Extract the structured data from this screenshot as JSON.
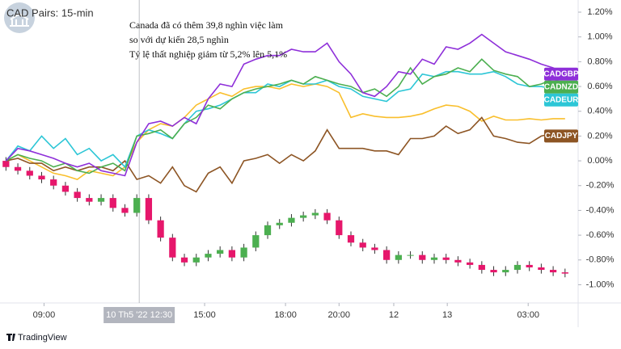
{
  "chart_data": {
    "type": "line",
    "title": "CAD Pairs: 15-min",
    "source": "TradingView",
    "annotations": [
      "Canada đã có thêm 39,8 nghìn việc làm",
      "so với dự kiến 28,5 nghìn",
      "Tỷ lệ thất nghiệp giảm từ 5,2% lên 5,1%"
    ],
    "crosshair": {
      "x": 11.2,
      "label": "10 Th5 '22 12:30"
    },
    "x": [
      0,
      1,
      2,
      3,
      4,
      5,
      6,
      7,
      8,
      9,
      10,
      11,
      12,
      13,
      14,
      15,
      16,
      17,
      18,
      19,
      20,
      21,
      22,
      23,
      24,
      25,
      26,
      27,
      28,
      29,
      30,
      31,
      32,
      33,
      34,
      35,
      36,
      37,
      38,
      39,
      40,
      41,
      42,
      43,
      44,
      45,
      46,
      47
    ],
    "xlim": [
      -0.5,
      48.1
    ],
    "xticks": [
      {
        "value": 3.2,
        "label": "09:00"
      },
      {
        "value": 16.7,
        "label": "15:00"
      },
      {
        "value": 23.5,
        "label": "18:00"
      },
      {
        "value": 28,
        "label": "20:00"
      },
      {
        "value": 32.6,
        "label": "12"
      },
      {
        "value": 37.1,
        "label": "13"
      },
      {
        "value": 43.9,
        "label": "03:00"
      }
    ],
    "ylim": [
      -1.147,
      1.298
    ],
    "yticks": [
      {
        "value": 1.2,
        "label": "1.20%"
      },
      {
        "value": 1.0,
        "label": "1.00%"
      },
      {
        "value": 0.8,
        "label": "0.80%"
      },
      {
        "value": 0.6,
        "label": "0.60%"
      },
      {
        "value": 0.4,
        "label": "0.40%"
      },
      {
        "value": 0.2,
        "label": "0.20%"
      },
      {
        "value": 0,
        "label": "0.00%"
      },
      {
        "value": -0.2,
        "label": "-0.20%"
      },
      {
        "value": -0.4,
        "label": "-0.40%"
      },
      {
        "value": -0.6,
        "label": "-0.60%"
      },
      {
        "value": -0.8,
        "label": "-0.80%"
      },
      {
        "value": -1.0,
        "label": "-1.00%"
      }
    ],
    "series": [
      {
        "color": "#f9bf2c",
        "values": [
          0.0,
          0.05,
          0.0,
          -0.05,
          -0.1,
          -0.12,
          -0.15,
          -0.08,
          -0.1,
          -0.12,
          -0.05,
          0.15,
          0.25,
          0.3,
          0.28,
          0.35,
          0.45,
          0.5,
          0.55,
          0.52,
          0.58,
          0.6,
          0.6,
          0.58,
          0.62,
          0.6,
          0.62,
          0.6,
          0.55,
          0.35,
          0.38,
          0.36,
          0.35,
          0.35,
          0.36,
          0.38,
          0.42,
          0.45,
          0.44,
          0.4,
          0.32,
          0.36,
          0.33,
          0.33,
          0.34,
          0.33,
          0.34,
          0.34
        ]
      },
      {
        "name": "CADJPY",
        "color": "#8d5524",
        "values": [
          0.0,
          0.02,
          -0.02,
          -0.02,
          -0.08,
          -0.05,
          -0.08,
          -0.05,
          -0.05,
          -0.08,
          0.0,
          -0.15,
          -0.12,
          -0.18,
          -0.05,
          -0.2,
          -0.25,
          -0.1,
          -0.05,
          -0.18,
          0.0,
          0.02,
          0.05,
          -0.02,
          0.05,
          0.0,
          0.08,
          0.25,
          0.1,
          0.1,
          0.1,
          0.08,
          0.08,
          0.05,
          0.18,
          0.18,
          0.2,
          0.28,
          0.22,
          0.25,
          0.35,
          0.2,
          0.18,
          0.15,
          0.14,
          0.2,
          0.22,
          0.2
        ]
      },
      {
        "name": "CADEUR",
        "color": "#2cc6d6",
        "values": [
          0.0,
          0.12,
          0.08,
          0.2,
          0.1,
          0.18,
          0.05,
          0.1,
          0.0,
          0.05,
          -0.05,
          0.2,
          0.25,
          0.22,
          0.18,
          0.3,
          0.4,
          0.42,
          0.45,
          0.5,
          0.55,
          0.55,
          0.62,
          0.6,
          0.65,
          0.62,
          0.62,
          0.65,
          0.6,
          0.58,
          0.52,
          0.5,
          0.48,
          0.56,
          0.58,
          0.7,
          0.68,
          0.72,
          0.72,
          0.7,
          0.7,
          0.72,
          0.68,
          0.62,
          0.6,
          0.6,
          0.58,
          0.56
        ]
      },
      {
        "name": "CADNZD",
        "color": "#4caf50",
        "values": [
          0.0,
          0.05,
          0.02,
          0.0,
          -0.05,
          -0.02,
          -0.08,
          -0.1,
          -0.05,
          -0.02,
          -0.08,
          0.2,
          0.22,
          0.25,
          0.18,
          0.3,
          0.35,
          0.45,
          0.42,
          0.5,
          0.55,
          0.58,
          0.6,
          0.62,
          0.65,
          0.62,
          0.68,
          0.65,
          0.62,
          0.6,
          0.55,
          0.58,
          0.52,
          0.6,
          0.75,
          0.62,
          0.68,
          0.7,
          0.75,
          0.72,
          0.82,
          0.73,
          0.7,
          0.68,
          0.6,
          0.62,
          0.66,
          0.62
        ]
      },
      {
        "name": "CADGBP",
        "color": "#8e2fd9",
        "values": [
          0.0,
          0.1,
          0.08,
          0.05,
          0.02,
          -0.02,
          -0.05,
          -0.02,
          -0.08,
          -0.1,
          -0.12,
          0.15,
          0.3,
          0.32,
          0.28,
          0.35,
          0.3,
          0.5,
          0.62,
          0.6,
          0.78,
          0.82,
          0.85,
          0.85,
          0.9,
          0.88,
          0.88,
          0.95,
          0.8,
          0.7,
          0.55,
          0.52,
          0.6,
          0.72,
          0.7,
          0.82,
          0.78,
          0.92,
          0.9,
          0.95,
          1.02,
          0.95,
          0.88,
          0.85,
          0.82,
          0.78,
          0.75,
          0.7
        ]
      }
    ],
    "candles": {
      "up_color": "#4caf50",
      "down_color": "#e6176b",
      "open": [
        0.0,
        -0.05,
        -0.08,
        -0.12,
        -0.15,
        -0.2,
        -0.25,
        -0.3,
        -0.33,
        -0.3,
        -0.38,
        -0.42,
        -0.3,
        -0.48,
        -0.62,
        -0.78,
        -0.82,
        -0.78,
        -0.75,
        -0.72,
        -0.78,
        -0.7,
        -0.6,
        -0.52,
        -0.5,
        -0.46,
        -0.44,
        -0.42,
        -0.48,
        -0.6,
        -0.66,
        -0.7,
        -0.72,
        -0.8,
        -0.76,
        -0.76,
        -0.8,
        -0.78,
        -0.8,
        -0.82,
        -0.84,
        -0.88,
        -0.9,
        -0.88,
        -0.84,
        -0.86,
        -0.88,
        -0.9
      ],
      "high": [
        0.03,
        -0.02,
        -0.05,
        -0.09,
        -0.12,
        -0.17,
        -0.22,
        -0.27,
        -0.27,
        -0.27,
        -0.35,
        -0.27,
        -0.27,
        -0.45,
        -0.59,
        -0.75,
        -0.75,
        -0.72,
        -0.69,
        -0.69,
        -0.67,
        -0.57,
        -0.49,
        -0.47,
        -0.43,
        -0.41,
        -0.39,
        -0.39,
        -0.45,
        -0.57,
        -0.63,
        -0.67,
        -0.69,
        -0.73,
        -0.73,
        -0.73,
        -0.75,
        -0.75,
        -0.77,
        -0.79,
        -0.81,
        -0.85,
        -0.85,
        -0.81,
        -0.81,
        -0.83,
        -0.85,
        -0.87
      ],
      "low": [
        -0.08,
        -0.11,
        -0.15,
        -0.18,
        -0.23,
        -0.28,
        -0.33,
        -0.36,
        -0.36,
        -0.41,
        -0.45,
        -0.45,
        -0.51,
        -0.65,
        -0.81,
        -0.85,
        -0.85,
        -0.81,
        -0.78,
        -0.81,
        -0.81,
        -0.73,
        -0.63,
        -0.55,
        -0.53,
        -0.49,
        -0.47,
        -0.51,
        -0.63,
        -0.69,
        -0.73,
        -0.75,
        -0.83,
        -0.83,
        -0.79,
        -0.83,
        -0.83,
        -0.83,
        -0.85,
        -0.87,
        -0.91,
        -0.93,
        -0.93,
        -0.91,
        -0.89,
        -0.91,
        -0.93,
        -0.94
      ],
      "close": [
        -0.05,
        -0.08,
        -0.12,
        -0.15,
        -0.2,
        -0.25,
        -0.3,
        -0.33,
        -0.3,
        -0.38,
        -0.42,
        -0.3,
        -0.48,
        -0.62,
        -0.78,
        -0.82,
        -0.78,
        -0.75,
        -0.72,
        -0.78,
        -0.7,
        -0.6,
        -0.52,
        -0.5,
        -0.46,
        -0.44,
        -0.42,
        -0.48,
        -0.6,
        -0.66,
        -0.7,
        -0.72,
        -0.8,
        -0.76,
        -0.76,
        -0.8,
        -0.78,
        -0.8,
        -0.82,
        -0.84,
        -0.88,
        -0.9,
        -0.88,
        -0.84,
        -0.86,
        -0.88,
        -0.9,
        -0.91
      ]
    }
  }
}
